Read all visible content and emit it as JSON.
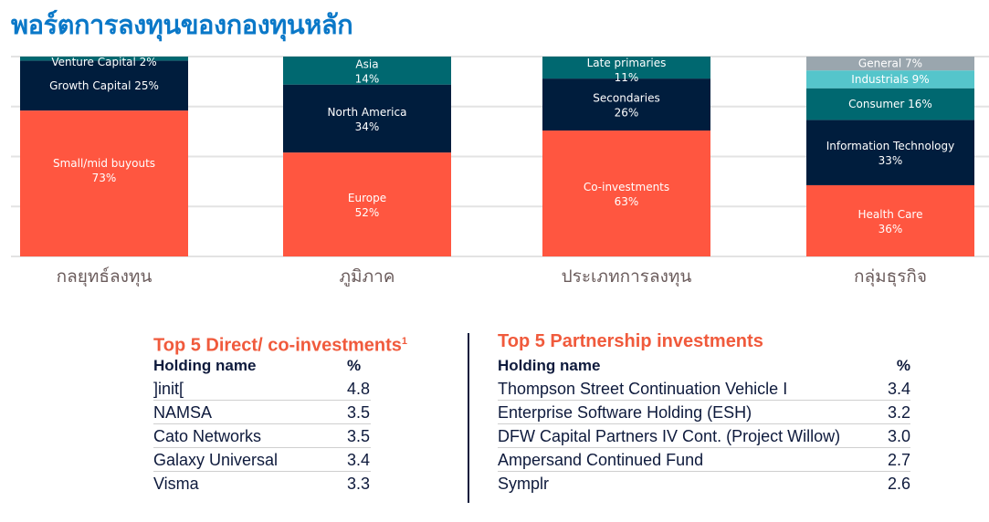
{
  "title": "พอร์ตการลงทุนของกองทุนหลัก",
  "chart_data": {
    "type": "bar",
    "stacked": true,
    "ylim": [
      0,
      100
    ],
    "grid": true,
    "categories": [
      "กลยุทธ์ลงทุน",
      "ภูมิภาค",
      "ประเภทการลงทุน",
      "กลุ่มธุรกิจ"
    ],
    "bars": [
      {
        "category": "กลยุทธ์ลงทุน",
        "segments": [
          {
            "name": "Small/mid buyouts",
            "value": 73,
            "label": "Small/mid buyouts",
            "pct": "73%",
            "color": "#ff5640"
          },
          {
            "name": "Growth Capital",
            "value": 25,
            "label": "Growth Capital 25%",
            "pct": "",
            "color": "#001d3d"
          },
          {
            "name": "Venture Capital",
            "value": 2,
            "label": "Venture Capital 2%",
            "pct": "",
            "color": "#006870"
          }
        ]
      },
      {
        "category": "ภูมิภาค",
        "segments": [
          {
            "name": "Europe",
            "value": 52,
            "label": "Europe",
            "pct": "52%",
            "color": "#ff5640"
          },
          {
            "name": "North America",
            "value": 34,
            "label": "North America",
            "pct": "34%",
            "color": "#001d3d"
          },
          {
            "name": "Asia",
            "value": 14,
            "label": "Asia",
            "pct": "14%",
            "color": "#006870"
          }
        ]
      },
      {
        "category": "ประเภทการลงทุน",
        "segments": [
          {
            "name": "Co-investments",
            "value": 63,
            "label": "Co-investments",
            "pct": "63%",
            "color": "#ff5640"
          },
          {
            "name": "Secondaries",
            "value": 26,
            "label": "Secondaries",
            "pct": "26%",
            "color": "#001d3d"
          },
          {
            "name": "Late primaries",
            "value": 11,
            "label": "Late primaries",
            "pct": "11%",
            "color": "#006870"
          }
        ]
      },
      {
        "category": "กลุ่มธุรกิจ",
        "segments": [
          {
            "name": "Health Care",
            "value": 36,
            "label": "Health Care",
            "pct": "36%",
            "color": "#ff5640"
          },
          {
            "name": "Information Technology",
            "value": 33,
            "label": "Information Technology",
            "pct": "33%",
            "color": "#001d3d"
          },
          {
            "name": "Consumer",
            "value": 16,
            "label": "Consumer 16%",
            "pct": "",
            "color": "#006870"
          },
          {
            "name": "Industrials",
            "value": 9,
            "label": "Industrials 9%",
            "pct": "",
            "color": "#55c5cb"
          },
          {
            "name": "General",
            "value": 7,
            "label": "General 7%",
            "pct": "",
            "color": "#9aa6ae"
          }
        ]
      }
    ]
  },
  "direct": {
    "title": "Top 5 Direct/ co-investments",
    "footnote": "1",
    "col_name": "Holding name",
    "col_pct": "%",
    "rows": [
      {
        "name": "]init[",
        "value": "4.8"
      },
      {
        "name": "NAMSA",
        "value": "3.5"
      },
      {
        "name": "Cato Networks",
        "value": "3.5"
      },
      {
        "name": "Galaxy Universal",
        "value": "3.4"
      },
      {
        "name": "Visma",
        "value": "3.3"
      }
    ]
  },
  "partnership": {
    "title": "Top 5 Partnership investments",
    "col_name": "Holding name",
    "col_pct": "%",
    "rows": [
      {
        "name": "Thompson Street Continuation Vehicle I",
        "value": "3.4"
      },
      {
        "name": "Enterprise Software Holding (ESH)",
        "value": "3.2"
      },
      {
        "name": "DFW Capital Partners IV Cont. (Project Willow)",
        "value": "3.0"
      },
      {
        "name": "Ampersand Continued Fund",
        "value": "2.7"
      },
      {
        "name": "Symplr",
        "value": "2.6"
      }
    ]
  }
}
